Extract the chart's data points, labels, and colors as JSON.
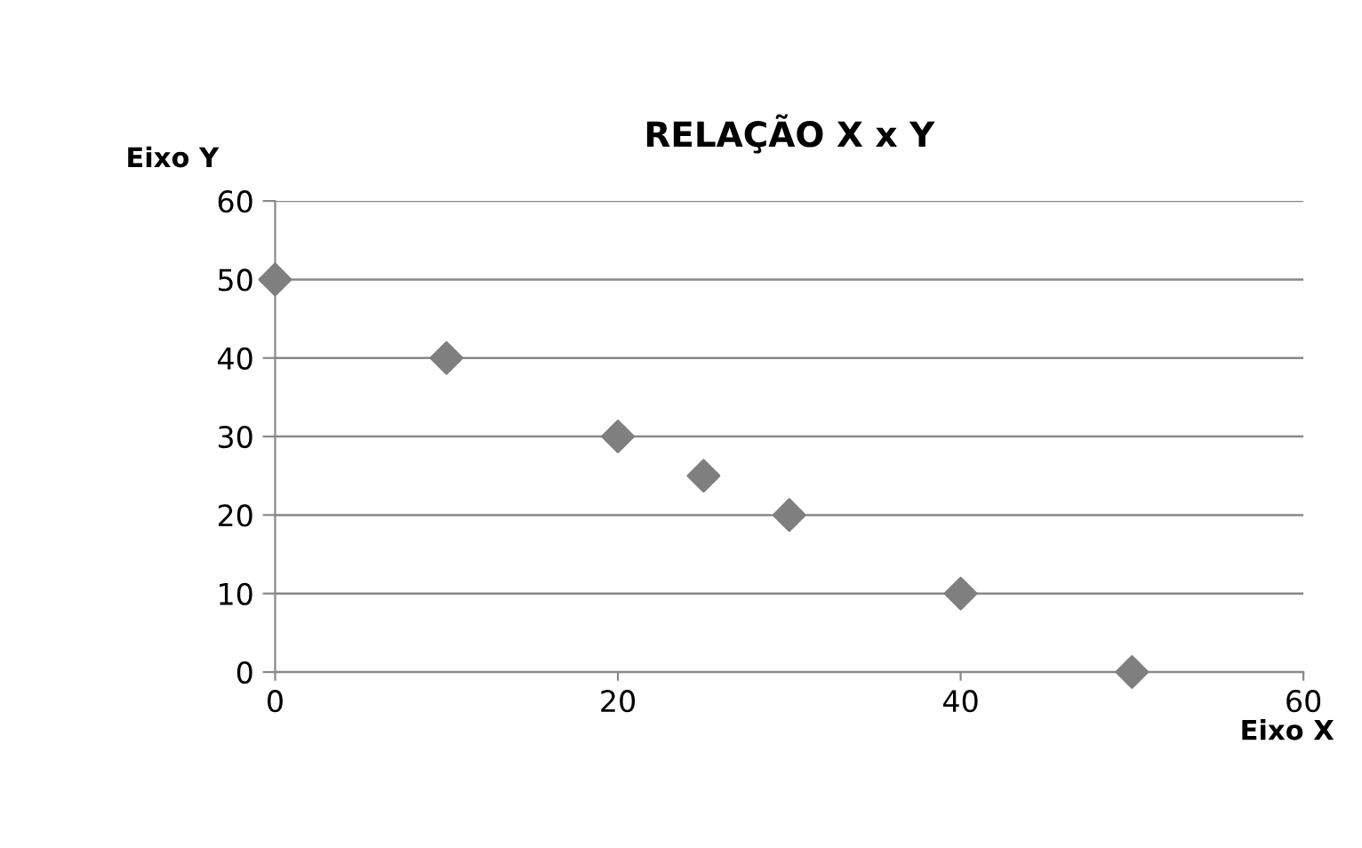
{
  "chart_data": {
    "type": "scatter",
    "title": "RELAÇÃO X x Y",
    "xlabel": "Eixo X",
    "ylabel": "Eixo Y",
    "x": [
      0,
      10,
      20,
      25,
      30,
      40,
      50
    ],
    "series": [
      {
        "color": "#7f7f7f",
        "values": [
          50,
          40,
          30,
          25,
          20,
          10,
          0
        ]
      }
    ],
    "xlim": [
      0,
      60
    ],
    "xticks": [
      0,
      20,
      40,
      60
    ],
    "ylim": [
      0,
      60
    ],
    "yticks": [
      0,
      10,
      20,
      30,
      40,
      50,
      60
    ],
    "grid": "y",
    "marker": "diamond"
  }
}
